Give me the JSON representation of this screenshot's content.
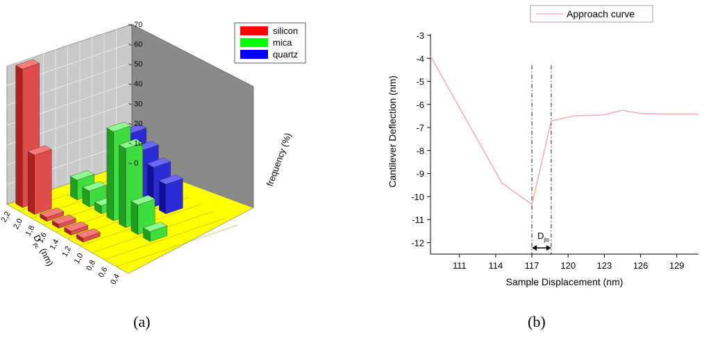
{
  "captions": {
    "a": "(a)",
    "b": "(b)"
  },
  "chart_data": [
    {
      "type": "bar",
      "subtype": "3d-bar",
      "legend": {
        "entries": [
          {
            "name": "silicon",
            "color": "#ff0000"
          },
          {
            "name": "mica",
            "color": "#00ff00"
          },
          {
            "name": "quartz",
            "color": "#0000ff"
          }
        ],
        "placement": "top-right"
      },
      "zlabel": "frequency (%)",
      "zticks": [
        "0",
        "10",
        "20",
        "30",
        "40",
        "50",
        "60",
        "70"
      ],
      "zlim": [
        0,
        70
      ],
      "ylabel_main": "D",
      "ylabel_sub": "jtc",
      "ylabel_unit": "(nm)",
      "yticks": [
        "2,2",
        "2,0",
        "1,8",
        "1,6",
        "1,4",
        "1,2",
        "1,0",
        "0,8",
        "0,6",
        "0,4"
      ],
      "series": [
        {
          "name": "silicon",
          "bins": [
            "2,2",
            "2,0",
            "1,8",
            "1,6",
            "1,4",
            "1,2"
          ],
          "values": [
            70,
            30,
            2,
            2,
            2,
            2
          ]
        },
        {
          "name": "mica",
          "bins": [
            "2,0",
            "1,8",
            "1,6",
            "1,4",
            "1,2",
            "1,0",
            "0,8"
          ],
          "values": [
            10,
            8,
            4,
            45,
            40,
            15,
            5
          ]
        },
        {
          "name": "quartz",
          "bins": [
            "1,8",
            "1,6",
            "1,4",
            "1,2"
          ],
          "values": [
            30,
            25,
            20,
            15
          ]
        }
      ],
      "grid": true
    },
    {
      "type": "line",
      "series": [
        {
          "name": "Approach curve",
          "color": "#f4a6a6",
          "x": [
            108.6,
            114.5,
            117.0,
            118.6,
            120.5,
            123.0,
            124.5,
            126.0,
            128.0,
            130.8
          ],
          "y": [
            -3.9,
            -9.4,
            -10.35,
            -6.72,
            -6.5,
            -6.45,
            -6.25,
            -6.4,
            -6.42,
            -6.42
          ]
        }
      ],
      "xlabel": "Sample Displacement (nm)",
      "ylabel": "Cantilever Deflection (nm)",
      "xlim": [
        108.6,
        130.8
      ],
      "ylim": [
        -12.5,
        -3
      ],
      "xticks": [
        111,
        114,
        117,
        120,
        123,
        126,
        129
      ],
      "yticks": [
        -3,
        -4,
        -5,
        -6,
        -7,
        -8,
        -9,
        -10,
        -11,
        -12
      ],
      "legend_placement": "top",
      "markers": {
        "x1": 117.0,
        "x2": 118.6
      },
      "annotation": {
        "main": "D",
        "sub": "jtc"
      },
      "grid": false
    }
  ]
}
